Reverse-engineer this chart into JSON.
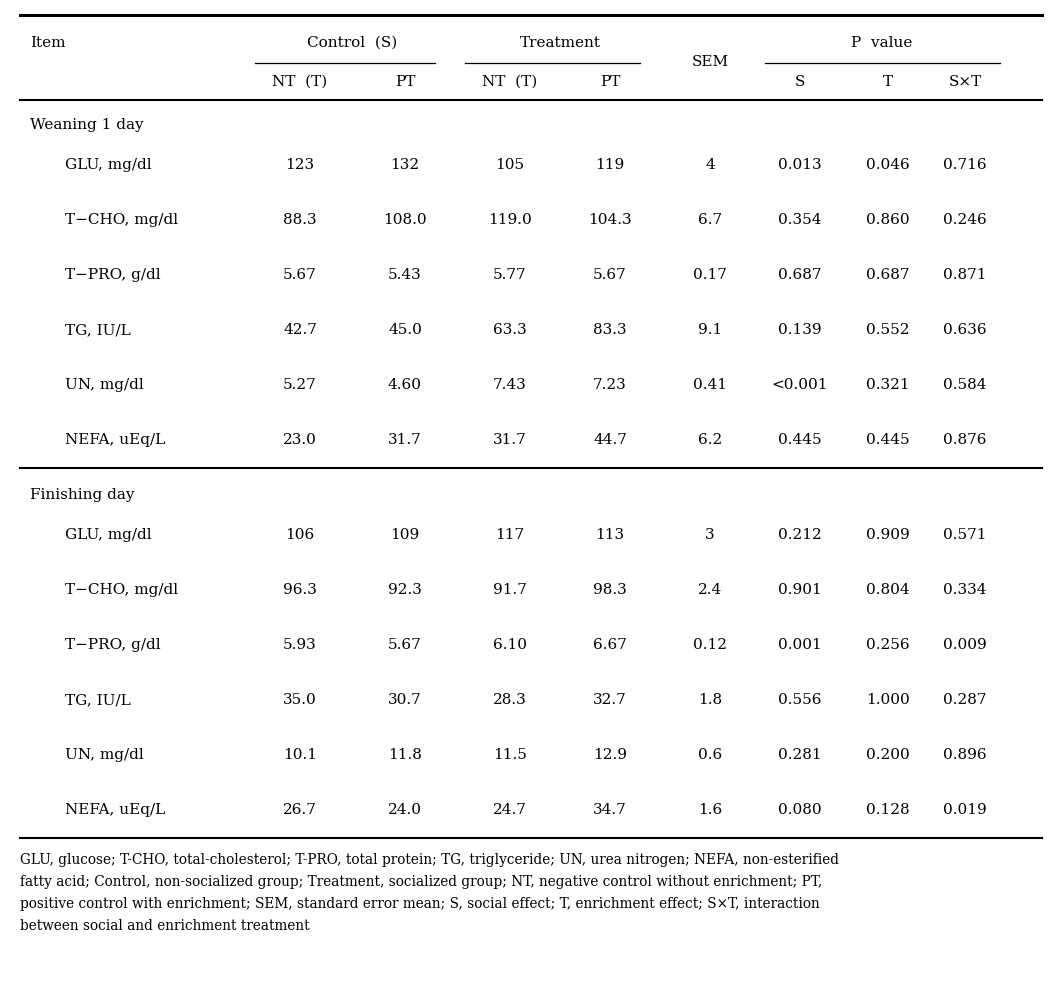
{
  "section1_label": "Weaning 1 day",
  "section2_label": "Finishing day",
  "rows_section1": [
    [
      "GLU, mg/dl",
      "123",
      "132",
      "105",
      "119",
      "4",
      "0.013",
      "0.046",
      "0.716"
    ],
    [
      "T−CHO, mg/dl",
      "88.3",
      "108.0",
      "119.0",
      "104.3",
      "6.7",
      "0.354",
      "0.860",
      "0.246"
    ],
    [
      "T−PRO, g/dl",
      "5.67",
      "5.43",
      "5.77",
      "5.67",
      "0.17",
      "0.687",
      "0.687",
      "0.871"
    ],
    [
      "TG, IU/L",
      "42.7",
      "45.0",
      "63.3",
      "83.3",
      "9.1",
      "0.139",
      "0.552",
      "0.636"
    ],
    [
      "UN, mg/dl",
      "5.27",
      "4.60",
      "7.43",
      "7.23",
      "0.41",
      "<0.001",
      "0.321",
      "0.584"
    ],
    [
      "NEFA, uEq/L",
      "23.0",
      "31.7",
      "31.7",
      "44.7",
      "6.2",
      "0.445",
      "0.445",
      "0.876"
    ]
  ],
  "rows_section2": [
    [
      "GLU, mg/dl",
      "106",
      "109",
      "117",
      "113",
      "3",
      "0.212",
      "0.909",
      "0.571"
    ],
    [
      "T−CHO, mg/dl",
      "96.3",
      "92.3",
      "91.7",
      "98.3",
      "2.4",
      "0.901",
      "0.804",
      "0.334"
    ],
    [
      "T−PRO, g/dl",
      "5.93",
      "5.67",
      "6.10",
      "6.67",
      "0.12",
      "0.001",
      "0.256",
      "0.009"
    ],
    [
      "TG, IU/L",
      "35.0",
      "30.7",
      "28.3",
      "32.7",
      "1.8",
      "0.556",
      "1.000",
      "0.287"
    ],
    [
      "UN, mg/dl",
      "10.1",
      "11.8",
      "11.5",
      "12.9",
      "0.6",
      "0.281",
      "0.200",
      "0.896"
    ],
    [
      "NEFA, uEq/L",
      "26.7",
      "24.0",
      "24.7",
      "34.7",
      "1.6",
      "0.080",
      "0.128",
      "0.019"
    ]
  ],
  "footnote_lines": [
    "GLU, glucose; T-CHO, total-cholesterol; T-PRO, total protein; TG, triglyceride; UN, urea nitrogen; NEFA, non-esterified",
    "fatty acid; Control, non-socialized group; Treatment, socialized group; NT, negative control without enrichment; PT,",
    "positive control with enrichment; SEM, standard error mean; S, social effect; T, enrichment effect; S×T, interaction",
    "between social and enrichment treatment"
  ],
  "background_color": "#ffffff",
  "font_size": 11.0,
  "footnote_font_size": 9.8
}
